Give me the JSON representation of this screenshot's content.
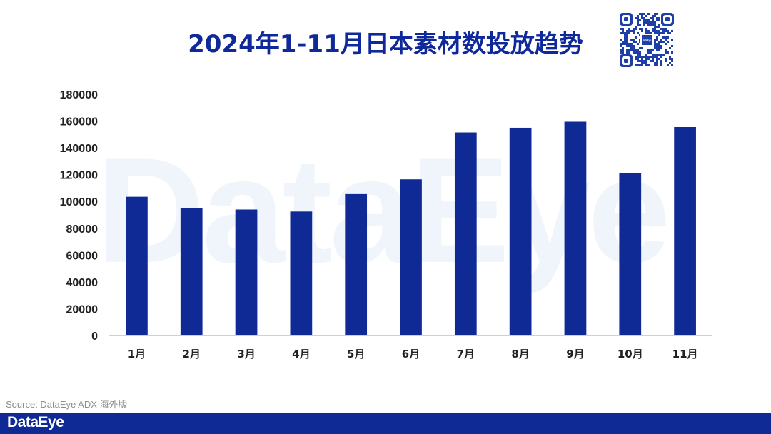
{
  "watermark": "DataEye",
  "title": "2024年1-11月日本素材数投放趋势",
  "qr": {
    "center_text": "DataEye"
  },
  "source": "Source: DataEye ADX 海外版",
  "footer": {
    "brand": "DataEye"
  },
  "colors": {
    "bar": "#0f2a95",
    "title": "#10299a",
    "footer": "#0f2a95"
  },
  "chart_data": {
    "type": "bar",
    "title": "",
    "xlabel": "",
    "ylabel": "",
    "categories": [
      "1月",
      "2月",
      "3月",
      "4月",
      "5月",
      "6月",
      "7月",
      "8月",
      "9月",
      "10月",
      "11月"
    ],
    "values": [
      103500,
      95000,
      94000,
      92500,
      105500,
      116500,
      151500,
      155000,
      159500,
      121000,
      155500
    ],
    "ylim": [
      0,
      180000
    ],
    "yticks": [
      0,
      20000,
      40000,
      60000,
      80000,
      100000,
      120000,
      140000,
      160000,
      180000
    ],
    "grid": false,
    "legend": "none"
  }
}
